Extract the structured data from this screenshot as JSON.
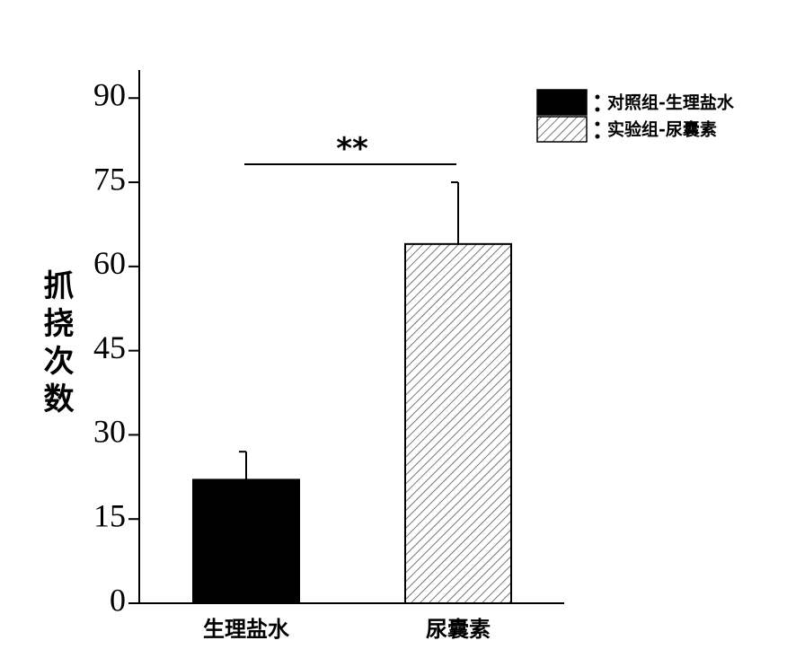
{
  "chart_data": {
    "type": "bar",
    "y_label": "抓挠次数",
    "categories": [
      "生理盐水",
      "尿囊素"
    ],
    "values": [
      22,
      64
    ],
    "errors": [
      5,
      11
    ],
    "legend": [
      "对照组-生理盐水",
      "实验组-尿囊素"
    ],
    "colors": [
      "#000000",
      "#ffffff"
    ],
    "hatch": [
      false,
      true
    ],
    "annotation": "**",
    "ylim": [
      0,
      95
    ],
    "yticks": [
      0,
      15,
      30,
      45,
      60,
      75,
      90
    ],
    "grid": false
  }
}
